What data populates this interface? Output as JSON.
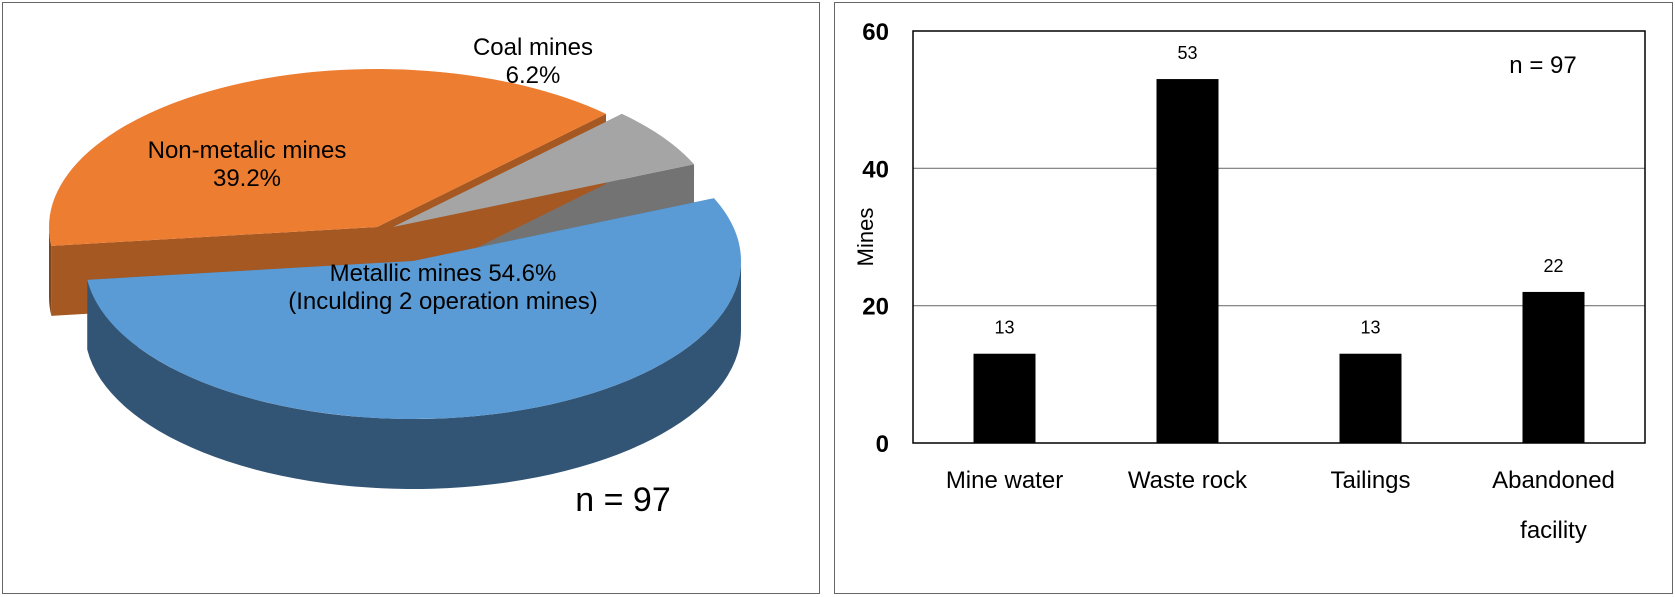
{
  "chart_data": [
    {
      "type": "pie",
      "title": "",
      "slices": [
        {
          "label": "Metallic mines 54.6%",
          "sublabel": "(Inculding 2 operation mines)",
          "value": 54.6,
          "color": "#5b9bd5"
        },
        {
          "label": "Non-metalic mines",
          "sublabel": "39.2%",
          "value": 39.2,
          "color": "#ed7d31"
        },
        {
          "label": "Coal mines",
          "sublabel": "6.2%",
          "value": 6.2,
          "color": "#a5a5a5"
        }
      ],
      "annotation": "n = 97"
    },
    {
      "type": "bar",
      "title": "",
      "categories": [
        "Mine water",
        "Waste rock",
        "Tailings",
        "Abandoned facility"
      ],
      "category_lines": [
        [
          "Mine water"
        ],
        [
          "Waste rock"
        ],
        [
          "Tailings"
        ],
        [
          "Abandoned",
          "facility"
        ]
      ],
      "values": [
        13,
        53,
        13,
        22
      ],
      "data_labels": [
        "13",
        "53",
        "13",
        "22"
      ],
      "ylabel": "Mines",
      "xlabel": "",
      "ylim": [
        0,
        60
      ],
      "yticks": [
        "0",
        "20",
        "40",
        "60"
      ],
      "grid": true,
      "bar_color": "#000000",
      "annotation": "n = 97"
    }
  ]
}
